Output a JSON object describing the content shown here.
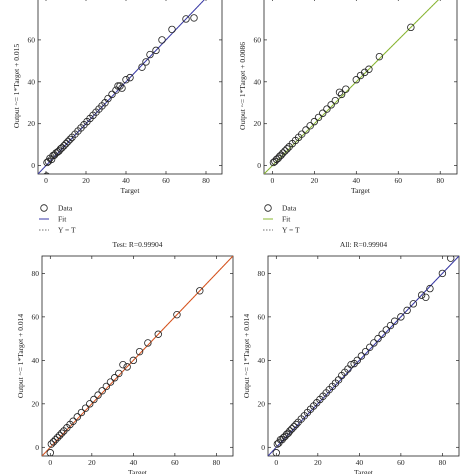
{
  "chart_data": [
    {
      "type": "scatter",
      "title": "",
      "xlabel": "Target",
      "ylabel": "Output ~= 1*Target + 0.015",
      "xlim": [
        -4,
        88
      ],
      "ylim": [
        -4,
        80
      ],
      "x_ticks": [
        0,
        20,
        40,
        60,
        80
      ],
      "y_ticks": [
        0,
        20,
        40,
        60
      ],
      "fit_color": "#3a3aa8",
      "fit": {
        "slope": 1,
        "intercept": 0.015
      },
      "data": {
        "x": [
          0.5,
          1.2,
          2.0,
          2.8,
          3.5,
          4.2,
          5.0,
          5.8,
          6.5,
          7.3,
          8.0,
          9.0,
          10.0,
          11.0,
          12.0,
          13.0,
          14.5,
          16.0,
          17.5,
          19.0,
          20.5,
          22.0,
          23.5,
          25.0,
          26.5,
          28.0,
          29.5,
          31.0,
          33.0,
          35.0,
          36.0,
          37.0,
          38.0,
          40.0,
          42.0,
          48.0,
          50.0,
          52.0,
          55.0,
          58.0,
          63.0,
          70.0,
          74.0,
          0.3
        ],
        "y": [
          1.5,
          2.0,
          3.5,
          3.0,
          4.8,
          5.0,
          6.0,
          6.5,
          7.0,
          8.0,
          8.5,
          9.5,
          10.5,
          11.5,
          12.5,
          13.5,
          15.0,
          16.5,
          18.0,
          19.5,
          21.0,
          22.5,
          24.0,
          25.5,
          27.0,
          28.5,
          30.0,
          32.0,
          34.0,
          36.0,
          38.0,
          38.0,
          37.0,
          41.0,
          42.0,
          47.0,
          49.5,
          53.0,
          55.0,
          60.0,
          65.0,
          70.0,
          70.5,
          -5.0
        ]
      }
    },
    {
      "type": "scatter",
      "title": "",
      "xlabel": "Target",
      "ylabel": "Output ~= 1*Target + 0.0086",
      "xlim": [
        -4,
        88
      ],
      "ylim": [
        -4,
        80
      ],
      "x_ticks": [
        0,
        20,
        40,
        60,
        80
      ],
      "y_ticks": [
        0,
        20,
        40,
        60
      ],
      "fit_color": "#8ab832",
      "fit": {
        "slope": 1,
        "intercept": 0.0086
      },
      "data": {
        "x": [
          0.5,
          1.2,
          2.0,
          2.8,
          3.5,
          4.2,
          5.0,
          6.0,
          7.0,
          8.0,
          9.5,
          11.0,
          12.5,
          14.0,
          16.0,
          18.0,
          20.0,
          22.0,
          24.0,
          26.0,
          28.0,
          30.0,
          32.0,
          33.0,
          35.0,
          40.0,
          42.0,
          44.0,
          46.0,
          51.0,
          66.0
        ],
        "y": [
          1.5,
          2.0,
          3.0,
          3.5,
          4.5,
          5.0,
          6.0,
          7.0,
          8.0,
          9.0,
          10.5,
          12.0,
          13.5,
          15.0,
          17.0,
          19.0,
          21.0,
          23.0,
          25.0,
          27.0,
          29.0,
          31.0,
          35.0,
          34.0,
          36.5,
          41.0,
          43.0,
          44.5,
          46.0,
          52.0,
          66.0
        ]
      }
    },
    {
      "type": "scatter",
      "title": "Test: R=0.99904",
      "xlabel": "Target",
      "ylabel": "Output ~= 1*Target + 0.014",
      "xlim": [
        -4,
        88
      ],
      "ylim": [
        -4,
        88
      ],
      "x_ticks": [
        0,
        20,
        40,
        60,
        80
      ],
      "y_ticks": [
        0,
        20,
        40,
        60,
        80
      ],
      "fit_color": "#d9541e",
      "fit": {
        "slope": 1,
        "intercept": 0.014
      },
      "data": {
        "x": [
          0.5,
          1.5,
          2.5,
          3.5,
          4.5,
          5.5,
          6.5,
          8.0,
          9.5,
          11.0,
          13.0,
          15.0,
          17.0,
          19.0,
          21.0,
          23.0,
          25.0,
          27.0,
          29.0,
          31.0,
          33.0,
          35.0,
          37.0,
          40.0,
          43.0,
          47.0,
          52.0,
          61.0,
          72.0,
          0.0
        ],
        "y": [
          1.5,
          2.5,
          3.5,
          4.5,
          5.5,
          6.5,
          7.5,
          9.0,
          10.5,
          12.0,
          14.0,
          16.0,
          18.0,
          20.0,
          22.0,
          24.0,
          26.0,
          28.0,
          30.0,
          32.0,
          34.0,
          38.0,
          37.0,
          40.0,
          44.0,
          48.0,
          52.0,
          61.0,
          72.0,
          -2.5
        ]
      }
    },
    {
      "type": "scatter",
      "title": "All: R=0.99904",
      "xlabel": "Target",
      "ylabel": "Output ~= 1*Target + 0.014",
      "xlim": [
        -4,
        88
      ],
      "ylim": [
        -4,
        88
      ],
      "x_ticks": [
        0,
        20,
        40,
        60,
        80
      ],
      "y_ticks": [
        0,
        20,
        40,
        60,
        80
      ],
      "fit_color": "#3a3aa8",
      "fit": {
        "slope": 1,
        "intercept": 0.014
      },
      "data": {
        "x": [
          0.5,
          1.2,
          2.0,
          2.8,
          3.5,
          4.2,
          5.0,
          5.8,
          6.5,
          7.5,
          8.5,
          9.5,
          10.5,
          12.0,
          13.5,
          15.0,
          16.5,
          18.0,
          19.5,
          21.0,
          22.5,
          24.0,
          25.5,
          27.0,
          28.5,
          30.0,
          31.5,
          33.0,
          34.5,
          36.0,
          37.5,
          39.0,
          41.0,
          43.0,
          45.0,
          47.0,
          49.0,
          51.0,
          53.0,
          55.0,
          57.0,
          60.0,
          63.0,
          66.0,
          70.0,
          72.0,
          74.0,
          80.0,
          84.0,
          0.0
        ],
        "y": [
          1.5,
          2.0,
          3.5,
          3.5,
          4.5,
          5.0,
          6.0,
          6.5,
          7.5,
          8.5,
          9.5,
          10.5,
          11.5,
          13.0,
          14.5,
          16.0,
          17.5,
          19.0,
          20.5,
          22.0,
          23.5,
          25.0,
          26.5,
          28.0,
          29.5,
          31.0,
          33.0,
          34.5,
          36.0,
          38.0,
          38.5,
          40.0,
          42.0,
          44.0,
          46.0,
          48.0,
          50.0,
          52.0,
          54.0,
          56.0,
          58.0,
          60.0,
          63.0,
          66.0,
          70.0,
          69.0,
          73.0,
          80.0,
          87.0,
          -2.5
        ]
      }
    }
  ],
  "legend": {
    "data_label": "Data",
    "fit_label": "Fit",
    "yt_label": "Y = T"
  }
}
